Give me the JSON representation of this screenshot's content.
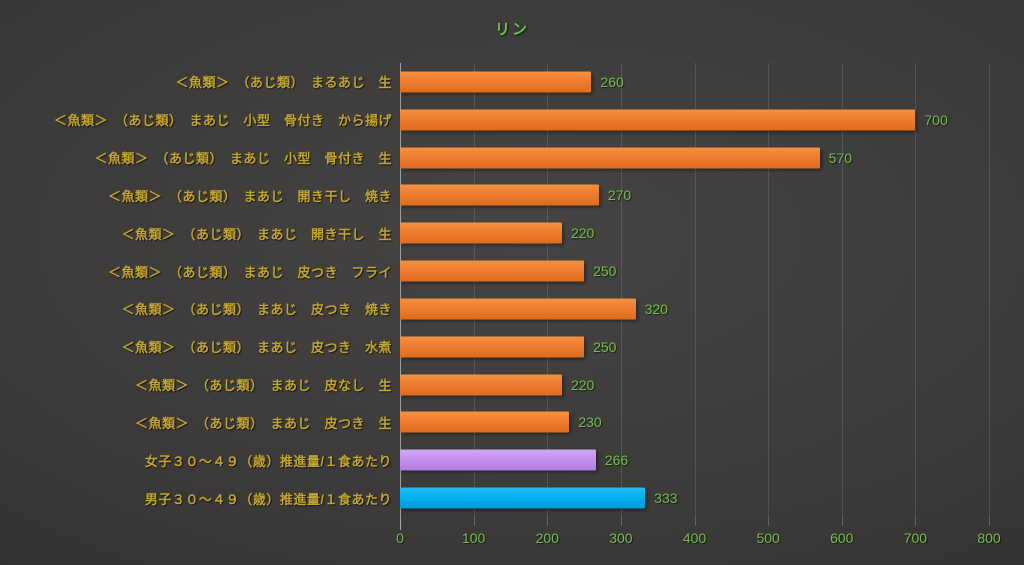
{
  "title": "リン",
  "colors": {
    "title_text": "#6fbf4a",
    "category_text": "#c3a42e",
    "value_text": "#74bf4b",
    "axis_text": "#74bf4b",
    "bar_orange": "#ed7d31",
    "bar_purple": "#c490ee",
    "bar_blue": "#00b0f0",
    "background_center": "#454443",
    "background_edge": "#272625"
  },
  "chart_data": {
    "type": "bar",
    "orientation": "horizontal",
    "title": "リン",
    "categories": [
      "＜魚類＞　（あじ類）　まるあじ　生",
      "＜魚類＞　（あじ類）　まあじ　小型　骨付き　から揚げ",
      "＜魚類＞　（あじ類）　まあじ　小型　骨付き　生",
      "＜魚類＞　（あじ類）　まあじ　開き干し　焼き",
      "＜魚類＞　（あじ類）　まあじ　開き干し　生",
      "＜魚類＞　（あじ類）　まあじ　皮つき　フライ",
      "＜魚類＞　（あじ類）　まあじ　皮つき　焼き",
      "＜魚類＞　（あじ類）　まあじ　皮つき　水煮",
      "＜魚類＞　（あじ類）　まあじ　皮なし　生",
      "＜魚類＞　（あじ類）　まあじ　皮つき　生",
      "女子３０～４９（歳）推進量/１食あたり",
      "男子３０～４９（歳）推進量/１食あたり"
    ],
    "values": [
      260,
      700,
      570,
      270,
      220,
      250,
      320,
      250,
      220,
      230,
      266,
      333
    ],
    "value_labels": [
      "260",
      "700",
      "570",
      "270",
      "220",
      "250",
      "320",
      "250",
      "220",
      "230",
      "266",
      "333"
    ],
    "bar_colors": [
      "orange",
      "orange",
      "orange",
      "orange",
      "orange",
      "orange",
      "orange",
      "orange",
      "orange",
      "orange",
      "purple",
      "blue"
    ],
    "xlabel": "",
    "ylabel": "",
    "xlim": [
      0,
      800
    ],
    "x_ticks": [
      "0",
      "100",
      "200",
      "300",
      "400",
      "500",
      "600",
      "700",
      "800"
    ],
    "grid": "vertical",
    "legend": "none",
    "value_labels_shown": true
  }
}
